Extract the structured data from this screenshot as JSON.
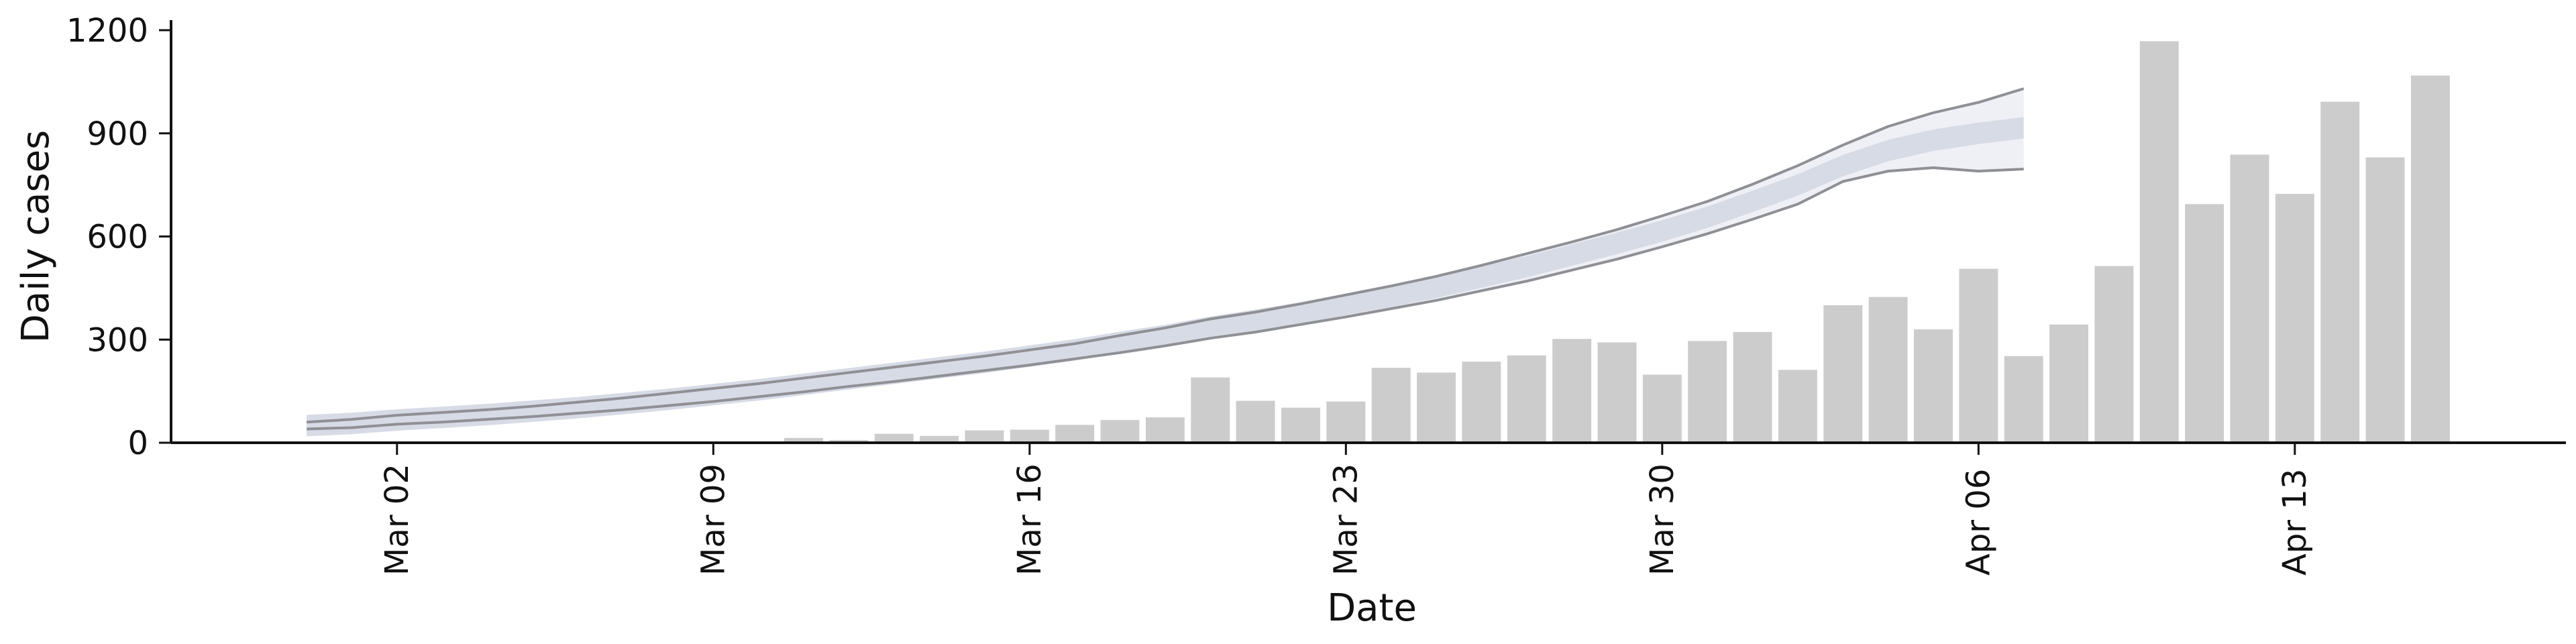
{
  "chart_data": {
    "type": "bar",
    "xlabel": "Date",
    "ylabel": "Daily cases",
    "ylim": [
      0,
      1200
    ],
    "yticks": [
      0,
      300,
      600,
      900,
      1200
    ],
    "xlim": [
      "2020-02-26",
      "2020-04-19"
    ],
    "xticks": [
      {
        "date": "2020-03-02",
        "label": "Mar 02"
      },
      {
        "date": "2020-03-09",
        "label": "Mar 09"
      },
      {
        "date": "2020-03-16",
        "label": "Mar 16"
      },
      {
        "date": "2020-03-23",
        "label": "Mar 23"
      },
      {
        "date": "2020-03-30",
        "label": "Mar 30"
      },
      {
        "date": "2020-04-06",
        "label": "Apr 06"
      },
      {
        "date": "2020-04-13",
        "label": "Apr 13"
      }
    ],
    "grid": false,
    "legend": "none",
    "series": [
      {
        "type": "bar",
        "color": "#cccccc",
        "x": [
          "2020-03-05",
          "2020-03-06",
          "2020-03-07",
          "2020-03-09",
          "2020-03-11",
          "2020-03-12",
          "2020-03-13",
          "2020-03-14",
          "2020-03-15",
          "2020-03-16",
          "2020-03-17",
          "2020-03-18",
          "2020-03-19",
          "2020-03-20",
          "2020-03-21",
          "2020-03-22",
          "2020-03-23",
          "2020-03-24",
          "2020-03-25",
          "2020-03-26",
          "2020-03-27",
          "2020-03-28",
          "2020-03-29",
          "2020-03-30",
          "2020-03-31",
          "2020-04-01",
          "2020-04-02",
          "2020-04-03",
          "2020-04-04",
          "2020-04-05",
          "2020-04-06",
          "2020-04-07",
          "2020-04-08",
          "2020-04-09",
          "2020-04-10",
          "2020-04-11",
          "2020-04-12",
          "2020-04-13",
          "2020-04-14",
          "2020-04-15",
          "2020-04-16",
          "2020-04-17"
        ],
        "values": [
          3,
          3,
          3,
          3,
          14,
          8,
          26,
          20,
          36,
          38,
          52,
          66,
          74,
          190,
          122,
          102,
          120,
          218,
          204,
          236,
          254,
          302,
          292,
          198,
          296,
          322,
          212,
          400,
          424,
          330,
          506,
          252,
          344,
          514,
          1168,
          694,
          838,
          724,
          992,
          830,
          1068,
          0
        ]
      },
      {
        "type": "band",
        "name": "",
        "x": [
          "2020-02-29",
          "2020-03-01",
          "2020-03-02",
          "2020-03-03",
          "2020-03-04",
          "2020-03-05",
          "2020-03-06",
          "2020-03-07",
          "2020-03-08",
          "2020-03-09",
          "2020-03-10",
          "2020-03-11",
          "2020-03-12",
          "2020-03-13",
          "2020-03-14",
          "2020-03-15",
          "2020-03-16",
          "2020-03-17",
          "2020-03-18",
          "2020-03-19",
          "2020-03-20",
          "2020-03-21",
          "2020-03-22",
          "2020-03-23",
          "2020-03-24",
          "2020-03-25",
          "2020-03-26",
          "2020-03-27",
          "2020-03-28",
          "2020-03-29",
          "2020-03-30",
          "2020-03-31",
          "2020-04-01",
          "2020-04-02",
          "2020-04-03",
          "2020-04-04",
          "2020-04-05",
          "2020-04-06",
          "2020-04-07"
        ],
        "upper": [
          60,
          68,
          80,
          88,
          96,
          106,
          118,
          130,
          144,
          158,
          172,
          188,
          204,
          220,
          236,
          252,
          270,
          288,
          312,
          334,
          360,
          380,
          404,
          430,
          456,
          484,
          516,
          550,
          584,
          620,
          660,
          702,
          752,
          806,
          866,
          920,
          960,
          990,
          1030
        ],
        "median": [
          50,
          56,
          66,
          74,
          82,
          92,
          102,
          114,
          126,
          140,
          154,
          170,
          186,
          202,
          218,
          234,
          252,
          270,
          292,
          312,
          336,
          356,
          378,
          402,
          426,
          452,
          482,
          512,
          546,
          580,
          616,
          656,
          702,
          750,
          806,
          850,
          880,
          900,
          916
        ],
        "lower": [
          40,
          44,
          54,
          60,
          68,
          76,
          86,
          96,
          108,
          120,
          134,
          148,
          164,
          178,
          194,
          210,
          226,
          244,
          262,
          282,
          304,
          322,
          344,
          366,
          390,
          414,
          442,
          470,
          502,
          534,
          570,
          608,
          650,
          694,
          760,
          790,
          800,
          790,
          796
        ]
      }
    ]
  }
}
